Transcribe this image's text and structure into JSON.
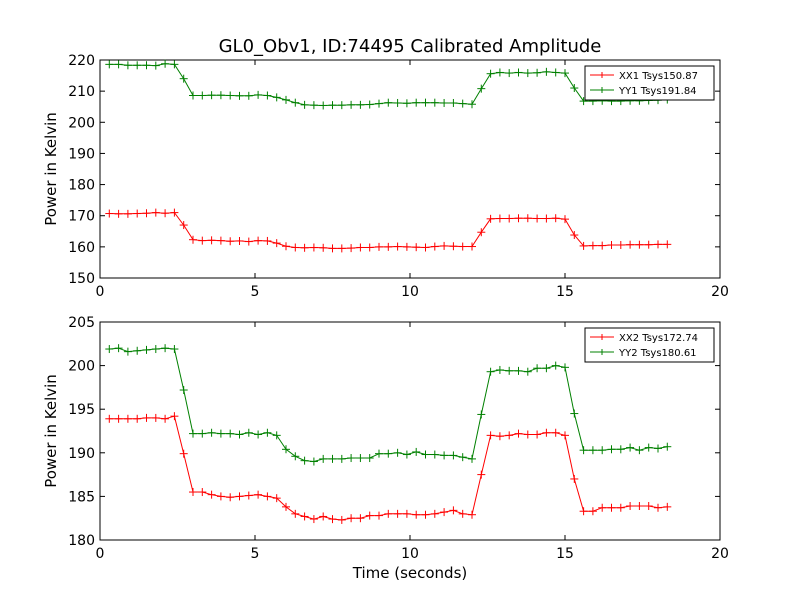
{
  "chart_data": [
    {
      "type": "line",
      "title": "GL0_Obv1, ID:74495 Calibrated Amplitude",
      "xlabel": "",
      "ylabel": "Power in Kelvin",
      "xlim": [
        0,
        20
      ],
      "ylim": [
        150,
        220
      ],
      "xticks": [
        "0",
        "5",
        "10",
        "15",
        "20"
      ],
      "yticks": [
        "150",
        "160",
        "170",
        "180",
        "190",
        "200",
        "210",
        "220"
      ],
      "grid": false,
      "legend_position": "top-right",
      "series": [
        {
          "name": "XX1 Tsys150.87",
          "color": "#ff0000",
          "x": [
            0.3,
            0.6,
            0.9,
            1.2,
            1.5,
            1.8,
            2.1,
            2.4,
            2.7,
            3.0,
            3.3,
            3.6,
            3.9,
            4.2,
            4.5,
            4.8,
            5.1,
            5.4,
            5.7,
            6.0,
            6.3,
            6.6,
            6.9,
            7.2,
            7.5,
            7.8,
            8.1,
            8.4,
            8.7,
            9.0,
            9.3,
            9.6,
            9.9,
            10.2,
            10.5,
            10.8,
            11.1,
            11.4,
            11.7,
            12.0,
            12.3,
            12.6,
            12.9,
            13.2,
            13.5,
            13.8,
            14.1,
            14.4,
            14.7,
            15.0,
            15.3,
            15.6,
            15.9,
            16.2,
            16.5,
            16.8,
            17.1,
            17.4,
            17.7,
            18.0,
            18.3
          ],
          "y": [
            170.7,
            170.6,
            170.6,
            170.7,
            170.8,
            171.0,
            170.8,
            171.0,
            167.0,
            162.3,
            162.0,
            162.1,
            162.0,
            161.8,
            161.9,
            161.7,
            162.0,
            161.9,
            161.2,
            160.2,
            159.8,
            159.7,
            159.8,
            159.7,
            159.5,
            159.5,
            159.6,
            159.8,
            159.8,
            160.0,
            160.0,
            160.1,
            160.0,
            159.9,
            159.8,
            160.1,
            160.3,
            160.2,
            160.1,
            160.1,
            164.7,
            169.0,
            169.1,
            169.1,
            169.2,
            169.2,
            169.1,
            169.1,
            169.2,
            168.9,
            163.8,
            160.3,
            160.4,
            160.4,
            160.6,
            160.6,
            160.7,
            160.7,
            160.7,
            160.8,
            160.8
          ]
        },
        {
          "name": "YY1 Tsys191.84",
          "color": "#008000",
          "x": [
            0.3,
            0.6,
            0.9,
            1.2,
            1.5,
            1.8,
            2.1,
            2.4,
            2.7,
            3.0,
            3.3,
            3.6,
            3.9,
            4.2,
            4.5,
            4.8,
            5.1,
            5.4,
            5.7,
            6.0,
            6.3,
            6.6,
            6.9,
            7.2,
            7.5,
            7.8,
            8.1,
            8.4,
            8.7,
            9.0,
            9.3,
            9.6,
            9.9,
            10.2,
            10.5,
            10.8,
            11.1,
            11.4,
            11.7,
            12.0,
            12.3,
            12.6,
            12.9,
            13.2,
            13.5,
            13.8,
            14.1,
            14.4,
            14.7,
            15.0,
            15.3,
            15.6,
            15.9,
            16.2,
            16.5,
            16.8,
            17.1,
            17.4,
            17.7,
            18.0,
            18.3
          ],
          "y": [
            218.6,
            218.6,
            218.3,
            218.3,
            218.3,
            218.2,
            218.8,
            218.6,
            214.0,
            208.6,
            208.6,
            208.7,
            208.7,
            208.6,
            208.5,
            208.5,
            208.8,
            208.6,
            208.0,
            207.2,
            206.3,
            205.6,
            205.5,
            205.4,
            205.5,
            205.5,
            205.6,
            205.6,
            205.7,
            206.0,
            206.3,
            206.2,
            206.1,
            206.3,
            206.3,
            206.3,
            206.2,
            206.2,
            206.0,
            205.8,
            210.8,
            215.6,
            216.0,
            215.8,
            216.0,
            215.8,
            215.9,
            216.2,
            216.0,
            215.8,
            211.0,
            206.8,
            206.8,
            206.9,
            206.8,
            206.8,
            206.9,
            206.9,
            207.0,
            207.1,
            207.3
          ]
        }
      ]
    },
    {
      "type": "line",
      "title": "",
      "xlabel": "Time (seconds)",
      "ylabel": "Power in Kelvin",
      "xlim": [
        0,
        20
      ],
      "ylim": [
        180,
        205
      ],
      "xticks": [
        "0",
        "5",
        "10",
        "15",
        "20"
      ],
      "yticks": [
        "180",
        "185",
        "190",
        "195",
        "200",
        "205"
      ],
      "grid": false,
      "legend_position": "top-right",
      "series": [
        {
          "name": "XX2 Tsys172.74",
          "color": "#ff0000",
          "x": [
            0.3,
            0.6,
            0.9,
            1.2,
            1.5,
            1.8,
            2.1,
            2.4,
            2.7,
            3.0,
            3.3,
            3.6,
            3.9,
            4.2,
            4.5,
            4.8,
            5.1,
            5.4,
            5.7,
            6.0,
            6.3,
            6.6,
            6.9,
            7.2,
            7.5,
            7.8,
            8.1,
            8.4,
            8.7,
            9.0,
            9.3,
            9.6,
            9.9,
            10.2,
            10.5,
            10.8,
            11.1,
            11.4,
            11.7,
            12.0,
            12.3,
            12.6,
            12.9,
            13.2,
            13.5,
            13.8,
            14.1,
            14.4,
            14.7,
            15.0,
            15.3,
            15.6,
            15.9,
            16.2,
            16.5,
            16.8,
            17.1,
            17.4,
            17.7,
            18.0,
            18.3
          ],
          "y": [
            193.9,
            193.9,
            193.9,
            193.9,
            194.0,
            194.0,
            193.9,
            194.2,
            189.9,
            185.5,
            185.5,
            185.2,
            185.0,
            184.9,
            185.0,
            185.1,
            185.2,
            185.0,
            184.8,
            183.8,
            183.0,
            182.7,
            182.4,
            182.7,
            182.4,
            182.3,
            182.5,
            182.5,
            182.8,
            182.8,
            183.0,
            183.0,
            183.0,
            182.9,
            182.9,
            183.0,
            183.2,
            183.4,
            183.0,
            182.9,
            187.5,
            192.0,
            191.9,
            192.0,
            192.2,
            192.1,
            192.1,
            192.3,
            192.3,
            192.0,
            187.0,
            183.3,
            183.3,
            183.7,
            183.7,
            183.7,
            183.9,
            183.9,
            183.9,
            183.7,
            183.8
          ]
        },
        {
          "name": "YY2 Tsys180.61",
          "color": "#008000",
          "x": [
            0.3,
            0.6,
            0.9,
            1.2,
            1.5,
            1.8,
            2.1,
            2.4,
            2.7,
            3.0,
            3.3,
            3.6,
            3.9,
            4.2,
            4.5,
            4.8,
            5.1,
            5.4,
            5.7,
            6.0,
            6.3,
            6.6,
            6.9,
            7.2,
            7.5,
            7.8,
            8.1,
            8.4,
            8.7,
            9.0,
            9.3,
            9.6,
            9.9,
            10.2,
            10.5,
            10.8,
            11.1,
            11.4,
            11.7,
            12.0,
            12.3,
            12.6,
            12.9,
            13.2,
            13.5,
            13.8,
            14.1,
            14.4,
            14.7,
            15.0,
            15.3,
            15.6,
            15.9,
            16.2,
            16.5,
            16.8,
            17.1,
            17.4,
            17.7,
            18.0,
            18.3
          ],
          "y": [
            201.9,
            202.0,
            201.6,
            201.7,
            201.8,
            201.9,
            202.0,
            201.9,
            197.2,
            192.2,
            192.2,
            192.3,
            192.2,
            192.2,
            192.1,
            192.3,
            192.1,
            192.3,
            192.0,
            190.4,
            189.6,
            189.1,
            189.0,
            189.3,
            189.3,
            189.3,
            189.4,
            189.4,
            189.4,
            189.9,
            189.9,
            190.0,
            189.8,
            190.1,
            189.8,
            189.8,
            189.7,
            189.7,
            189.5,
            189.3,
            194.4,
            199.3,
            199.5,
            199.4,
            199.4,
            199.3,
            199.7,
            199.7,
            200.0,
            199.8,
            194.5,
            190.3,
            190.3,
            190.3,
            190.4,
            190.4,
            190.6,
            190.3,
            190.6,
            190.5,
            190.7
          ]
        }
      ]
    }
  ]
}
